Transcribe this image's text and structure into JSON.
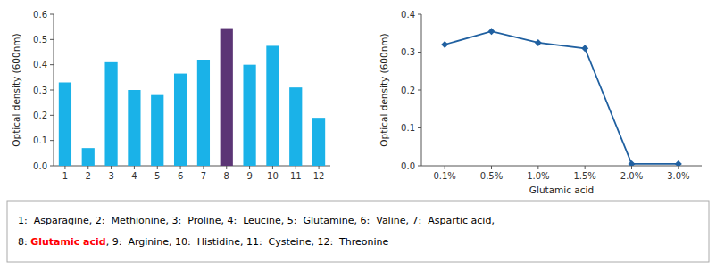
{
  "chart_data": [
    {
      "type": "bar",
      "categories": [
        1,
        2,
        3,
        4,
        5,
        6,
        7,
        8,
        9,
        10,
        11,
        12
      ],
      "values": [
        0.33,
        0.07,
        0.41,
        0.3,
        0.28,
        0.365,
        0.42,
        0.545,
        0.4,
        0.475,
        0.31,
        0.19
      ],
      "colors": [
        "#1ab2e8",
        "#1ab2e8",
        "#1ab2e8",
        "#1ab2e8",
        "#1ab2e8",
        "#1ab2e8",
        "#1ab2e8",
        "#5b3575",
        "#1ab2e8",
        "#1ab2e8",
        "#1ab2e8",
        "#1ab2e8"
      ],
      "ylim": [
        0,
        0.6
      ],
      "yticks": [
        {
          "value": 0.0,
          "label": "0.0"
        },
        0.1,
        0.2,
        0.3,
        0.4,
        0.5,
        0.6
      ],
      "ylabel": "Optical density (600nm)",
      "annotations": [
        [
          {
            "text": "1:  Asparagine, 2:  Methionine, 3:  Proline, 4:  Leucine, 5:  Glutamine, 6:  Valine, 7:  Aspartic acid,"
          }
        ],
        [
          {
            "text": "8: "
          },
          {
            "text": "Glutamic acid",
            "color": "red"
          },
          {
            "text": ", 9:  Arginine, 10:  Histidine, 11:  Cysteine, 12:  Threonine"
          }
        ]
      ]
    },
    {
      "type": "line",
      "categories": [
        "0.1%",
        "0.5%",
        "1.0%",
        "1.5%",
        "2.0%",
        "3.0%"
      ],
      "values": [
        0.32,
        0.355,
        0.325,
        0.31,
        0.005,
        0.005
      ],
      "color": "#2060a0",
      "marker": "diamond",
      "ylim": [
        0,
        0.4
      ],
      "yticks": [
        {
          "value": 0.0,
          "label": "0.0"
        },
        0.1,
        0.2,
        0.3,
        0.4
      ],
      "ylabel": "Optical density (600nm)",
      "xlabel": "Glutamic acid"
    }
  ]
}
